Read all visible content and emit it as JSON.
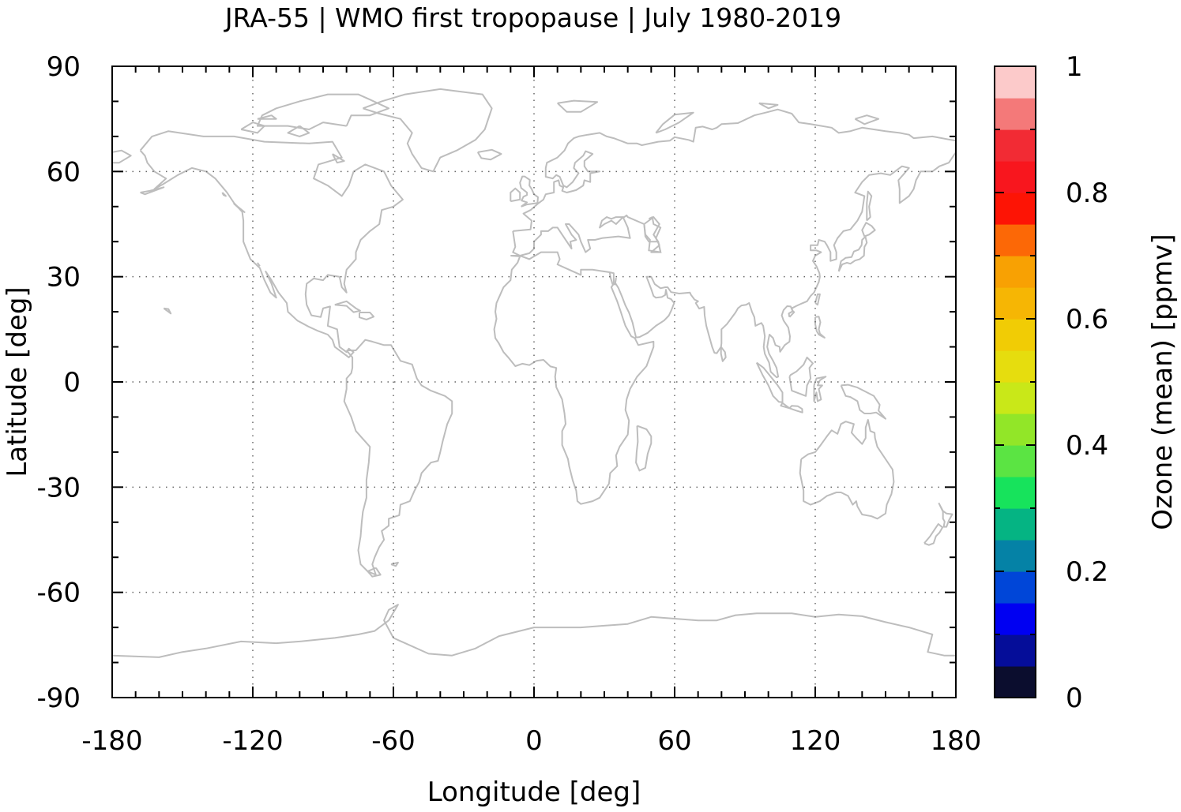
{
  "chart_data": {
    "type": "heatmap",
    "title": "JRA-55 | WMO first tropopause | July 1980-2019",
    "xlabel": "Longitude [deg]",
    "ylabel": "Latitude [deg]",
    "xlim": [
      -180,
      180
    ],
    "ylim": [
      -90,
      90
    ],
    "x_ticks": [
      "-180",
      "-120",
      "-60",
      "0",
      "60",
      "120",
      "180"
    ],
    "y_ticks": [
      "90",
      "60",
      "30",
      "0",
      "-30",
      "-60",
      "-90"
    ],
    "grid": true,
    "colorbar": {
      "label": "Ozone (mean) [ppmv]",
      "range": [
        0,
        1
      ],
      "ticks": [
        "0",
        "0.2",
        "0.4",
        "0.6",
        "0.8",
        "1"
      ],
      "colors": [
        "#0b0d2e",
        "#050d99",
        "#0000f2",
        "#0046d8",
        "#0582a6",
        "#05b483",
        "#17e35c",
        "#5be443",
        "#92e628",
        "#c9e818",
        "#e6dd0e",
        "#f1cc05",
        "#f6b604",
        "#f8a103",
        "#fc6806",
        "#fd1405",
        "#f8161e",
        "#f22b34",
        "#f47979",
        "#fccaca"
      ]
    },
    "data_values": null,
    "note_visible": ""
  },
  "map": {
    "coastline_color": "#bdbdbd"
  }
}
